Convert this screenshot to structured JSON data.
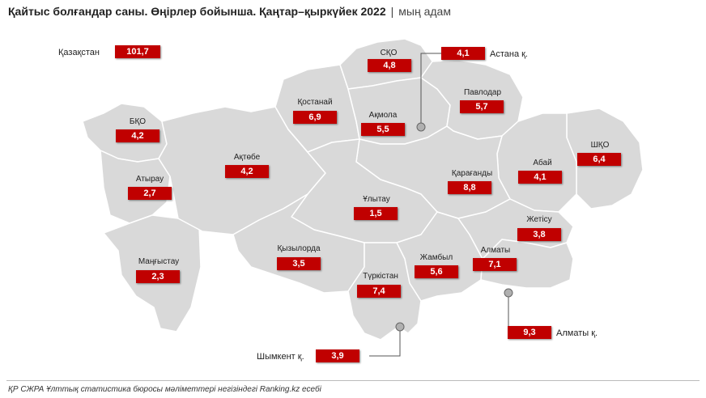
{
  "title": {
    "main": "Қайтыс болғандар саны. Өңірлер бойынша. Қаңтар–қыркүйек 2022",
    "separator": "|",
    "unit": "мың адам"
  },
  "kazakhstan": {
    "label": "Қазақстан",
    "value": "101,7"
  },
  "regions": {
    "sko": {
      "label": "СҚО",
      "value": "4,8"
    },
    "kostanay": {
      "label": "Қостанай",
      "value": "6,9"
    },
    "akmola": {
      "label": "Ақмола",
      "value": "5,5"
    },
    "pavlodar": {
      "label": "Павлодар",
      "value": "5,7"
    },
    "bko": {
      "label": "БҚО",
      "value": "4,2"
    },
    "aktobe": {
      "label": "Ақтөбе",
      "value": "4,2"
    },
    "atyrau": {
      "label": "Атырау",
      "value": "2,7"
    },
    "karaganda": {
      "label": "Қарағанды",
      "value": "8,8"
    },
    "abai": {
      "label": "Абай",
      "value": "4,1"
    },
    "shko": {
      "label": "ШҚО",
      "value": "6,4"
    },
    "ulytau": {
      "label": "Ұлытау",
      "value": "1,5"
    },
    "zhetisu": {
      "label": "Жетісу",
      "value": "3,8"
    },
    "mangystau": {
      "label": "Маңғыстау",
      "value": "2,3"
    },
    "kyzylorda": {
      "label": "Қызылорда",
      "value": "3,5"
    },
    "zhambyl": {
      "label": "Жамбыл",
      "value": "5,6"
    },
    "almaty_obl": {
      "label": "Алматы",
      "value": "7,1"
    },
    "turkistan": {
      "label": "Түркістан",
      "value": "7,4"
    }
  },
  "cities": {
    "astana": {
      "label": "Астана қ.",
      "value": "4,1"
    },
    "almaty": {
      "label": "Алматы қ.",
      "value": "9,3"
    },
    "shymkent": {
      "label": "Шымкент қ.",
      "value": "3,9"
    }
  },
  "colors": {
    "land": "#d9d9d9",
    "border": "#ffffff",
    "badge": "#c00000"
  },
  "footer": "ҚР СЖРА Ұлттық статистика бюросы мәліметтері негізіндегі Ranking.kz есебі"
}
